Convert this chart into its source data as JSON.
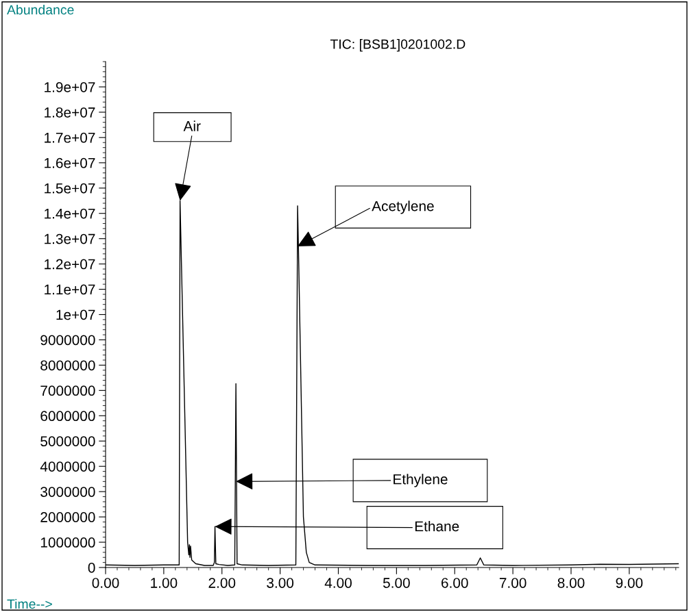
{
  "chart_data": {
    "type": "line",
    "title": "TIC: [BSB1]0201002.D",
    "xlabel": "Time-->",
    "ylabel": "Abundance",
    "x": [
      0,
      0.5,
      1.0,
      1.265,
      1.28,
      1.41,
      1.43,
      1.44,
      1.45,
      1.46,
      1.48,
      1.55,
      1.7,
      1.85,
      1.87,
      1.88,
      1.895,
      1.95,
      2.1,
      2.22,
      2.24,
      2.26,
      2.35,
      2.8,
      3.27,
      3.3,
      3.32,
      3.4,
      3.45,
      3.5,
      3.6,
      4.5,
      5.5,
      6.38,
      6.44,
      6.5,
      7.0,
      8.0,
      8.5,
      9.0,
      9.85
    ],
    "series": [
      {
        "color": "#000000",
        "values": [
          100000,
          80000,
          100000,
          100000,
          14500000,
          1000000,
          500000,
          900000,
          400000,
          850000,
          300000,
          150000,
          80000,
          80000,
          200000,
          1620000,
          150000,
          120000,
          80000,
          100000,
          7270000,
          150000,
          100000,
          80000,
          100000,
          14300000,
          12000000,
          2000000,
          600000,
          200000,
          100000,
          80000,
          80000,
          100000,
          380000,
          100000,
          80000,
          100000,
          130000,
          120000,
          150000
        ]
      }
    ],
    "annotations": [
      {
        "text": "Air",
        "x": 1.28,
        "y": 14500000
      },
      {
        "text": "Acetylene",
        "x": 3.3,
        "y": 12700000
      },
      {
        "text": "Ethylene",
        "x": 2.24,
        "y": 3400000
      },
      {
        "text": "Ethane",
        "x": 1.88,
        "y": 1620000
      }
    ],
    "xlim": [
      0,
      9.85
    ],
    "ylim": [
      0,
      20000000
    ],
    "xticks": [
      {
        "value": 0,
        "label": "0.00"
      },
      {
        "value": 1,
        "label": "1.00"
      },
      {
        "value": 2,
        "label": "2.00"
      },
      {
        "value": 3,
        "label": "3.00"
      },
      {
        "value": 4,
        "label": "4.00"
      },
      {
        "value": 5,
        "label": "5.00"
      },
      {
        "value": 6,
        "label": "6.00"
      },
      {
        "value": 7,
        "label": "7.00"
      },
      {
        "value": 8,
        "label": "8.00"
      },
      {
        "value": 9,
        "label": "9.00"
      }
    ],
    "yticks": [
      0,
      1000000,
      2000000,
      3000000,
      4000000,
      5000000,
      6000000,
      7000000,
      8000000,
      9000000,
      {
        "value": 10000000,
        "label": "1e+07"
      },
      {
        "value": 11000000,
        "label": "1.1e+07"
      },
      {
        "value": 12000000,
        "label": "1.2e+07"
      },
      {
        "value": 13000000,
        "label": "1.3e+07"
      },
      {
        "value": 14000000,
        "label": "1.4e+07"
      },
      {
        "value": 15000000,
        "label": "1.5e+07"
      },
      {
        "value": 16000000,
        "label": "1.6e+07"
      },
      {
        "value": 17000000,
        "label": "1.7e+07"
      },
      {
        "value": 18000000,
        "label": "1.8e+07"
      },
      {
        "value": 19000000,
        "label": "1.9e+07"
      }
    ],
    "grid": false,
    "legend": false,
    "marker": "none",
    "line_style": "solid"
  }
}
